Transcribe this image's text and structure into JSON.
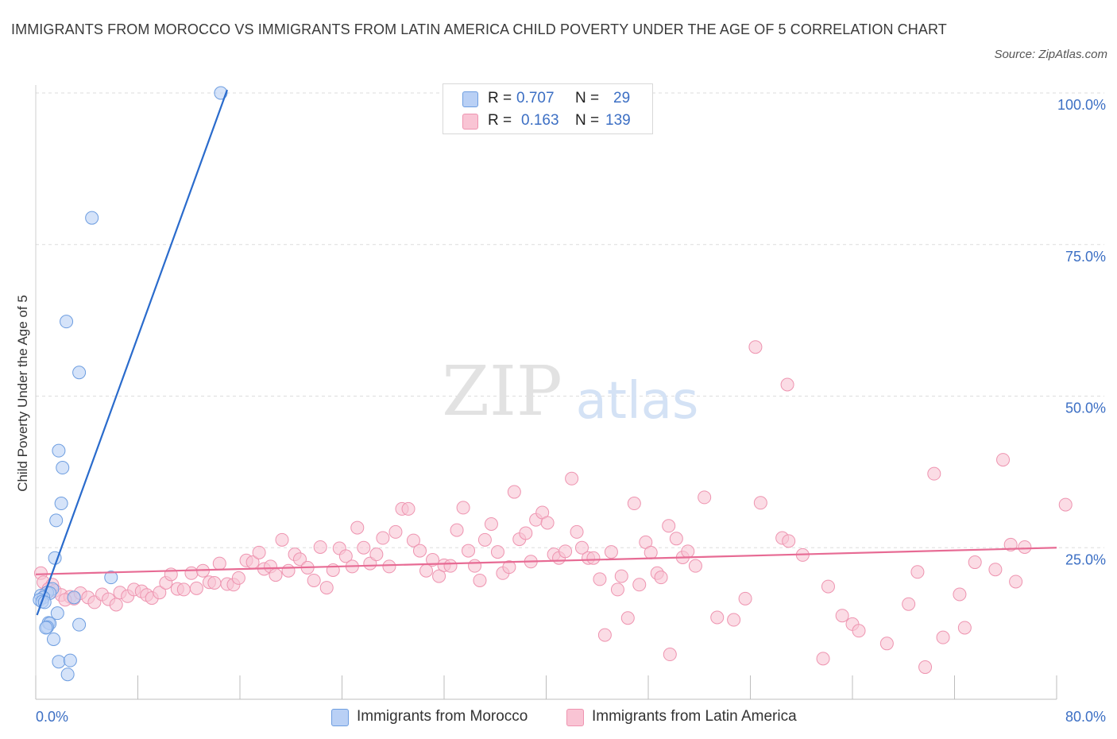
{
  "title": "IMMIGRANTS FROM MOROCCO VS IMMIGRANTS FROM LATIN AMERICA CHILD POVERTY UNDER THE AGE OF 5 CORRELATION CHART",
  "source": "Source: ZipAtlas.com",
  "watermark": {
    "zip": "ZIP",
    "atlas": "atlas"
  },
  "legend": {
    "rows": [
      {
        "r_label": "R =",
        "r_value": "0.707",
        "n_label": "N =",
        "n_value": "29"
      },
      {
        "r_label": "R =",
        "r_value": "0.163",
        "n_label": "N =",
        "n_value": "139"
      }
    ]
  },
  "colors": {
    "morocco_fill": "#b9d0f5",
    "morocco_stroke": "#6d9de0",
    "morocco_line": "#2a6bcc",
    "latam_fill": "#f9c4d4",
    "latam_stroke": "#ee94b0",
    "latam_line": "#e76b94",
    "tick_label": "#3c6fc4",
    "grid": "#dddddd"
  },
  "chart_data": {
    "type": "scatter",
    "title": "IMMIGRANTS FROM MOROCCO VS IMMIGRANTS FROM LATIN AMERICA CHILD POVERTY UNDER THE AGE OF 5 CORRELATION CHART",
    "xlabel": "",
    "ylabel": "Child Poverty Under the Age of 5",
    "xlim": [
      0,
      80
    ],
    "ylim": [
      0,
      100
    ],
    "x_tick_labels": [
      "0.0%",
      "80.0%"
    ],
    "y_ticks": [
      25,
      50,
      75,
      100
    ],
    "y_tick_labels": [
      "25.0%",
      "50.0%",
      "75.0%",
      "100.0%"
    ],
    "grid": true,
    "legend_position": "top-center",
    "series": [
      {
        "name": "Immigrants from Morocco",
        "r": 0.707,
        "n": 29,
        "trend": {
          "x": [
            0.1,
            15.0
          ],
          "y": [
            13.9,
            100.5
          ]
        },
        "points": [
          [
            14.5,
            100.0
          ],
          [
            4.4,
            79.4
          ],
          [
            2.4,
            62.3
          ],
          [
            3.4,
            53.9
          ],
          [
            1.8,
            41.0
          ],
          [
            2.1,
            38.2
          ],
          [
            2.0,
            32.3
          ],
          [
            1.6,
            29.5
          ],
          [
            1.5,
            23.3
          ],
          [
            5.9,
            20.1
          ],
          [
            1.3,
            18.2
          ],
          [
            0.9,
            17.6
          ],
          [
            1.1,
            17.5
          ],
          [
            0.4,
            17.1
          ],
          [
            0.6,
            16.8
          ],
          [
            3.0,
            16.8
          ],
          [
            0.3,
            16.4
          ],
          [
            0.5,
            16.1
          ],
          [
            0.7,
            16.0
          ],
          [
            1.7,
            14.2
          ],
          [
            1.0,
            12.6
          ],
          [
            1.1,
            12.5
          ],
          [
            3.4,
            12.3
          ],
          [
            0.9,
            11.9
          ],
          [
            0.8,
            11.8
          ],
          [
            1.4,
            9.9
          ],
          [
            1.8,
            6.2
          ],
          [
            2.7,
            6.4
          ],
          [
            2.5,
            4.1
          ]
        ]
      },
      {
        "name": "Immigrants from Latin America",
        "r": 0.163,
        "n": 139,
        "trend": {
          "x": [
            0.0,
            80.0
          ],
          "y": [
            20.6,
            25.0
          ]
        },
        "points": [
          [
            0.4,
            20.8
          ],
          [
            0.6,
            19.3
          ],
          [
            1.3,
            18.9
          ],
          [
            1.0,
            18.2
          ],
          [
            1.5,
            17.9
          ],
          [
            0.8,
            17.5
          ],
          [
            2.0,
            17.2
          ],
          [
            2.7,
            16.9
          ],
          [
            3.0,
            16.6
          ],
          [
            2.3,
            16.4
          ],
          [
            3.5,
            17.5
          ],
          [
            4.1,
            16.8
          ],
          [
            4.6,
            16.0
          ],
          [
            5.2,
            17.3
          ],
          [
            5.7,
            16.5
          ],
          [
            6.3,
            15.6
          ],
          [
            6.6,
            17.6
          ],
          [
            7.2,
            17.0
          ],
          [
            7.7,
            18.1
          ],
          [
            8.3,
            17.8
          ],
          [
            8.7,
            17.2
          ],
          [
            9.1,
            16.7
          ],
          [
            9.7,
            17.6
          ],
          [
            10.2,
            19.2
          ],
          [
            10.6,
            20.6
          ],
          [
            11.1,
            18.2
          ],
          [
            11.6,
            18.1
          ],
          [
            12.2,
            20.8
          ],
          [
            12.6,
            18.3
          ],
          [
            13.1,
            21.2
          ],
          [
            13.6,
            19.3
          ],
          [
            14.0,
            19.2
          ],
          [
            14.4,
            22.4
          ],
          [
            15.0,
            19.0
          ],
          [
            15.5,
            18.9
          ],
          [
            15.9,
            20.0
          ],
          [
            16.5,
            22.9
          ],
          [
            17.0,
            22.6
          ],
          [
            17.5,
            24.2
          ],
          [
            17.9,
            21.5
          ],
          [
            18.4,
            21.9
          ],
          [
            18.8,
            20.5
          ],
          [
            19.3,
            26.3
          ],
          [
            19.8,
            21.2
          ],
          [
            20.3,
            23.9
          ],
          [
            20.7,
            23.1
          ],
          [
            21.3,
            21.7
          ],
          [
            21.8,
            19.6
          ],
          [
            22.3,
            25.1
          ],
          [
            22.8,
            18.4
          ],
          [
            23.3,
            21.3
          ],
          [
            23.8,
            24.9
          ],
          [
            24.3,
            23.6
          ],
          [
            24.8,
            21.9
          ],
          [
            25.2,
            28.3
          ],
          [
            25.7,
            25.0
          ],
          [
            26.2,
            22.4
          ],
          [
            26.7,
            23.9
          ],
          [
            27.2,
            26.6
          ],
          [
            27.7,
            21.9
          ],
          [
            28.2,
            27.6
          ],
          [
            28.7,
            31.4
          ],
          [
            29.2,
            31.4
          ],
          [
            29.6,
            26.2
          ],
          [
            30.1,
            24.5
          ],
          [
            30.6,
            21.2
          ],
          [
            31.1,
            23.0
          ],
          [
            31.6,
            20.3
          ],
          [
            32.0,
            22.1
          ],
          [
            32.5,
            22.0
          ],
          [
            33.0,
            27.9
          ],
          [
            33.5,
            31.6
          ],
          [
            33.9,
            24.5
          ],
          [
            34.4,
            22.0
          ],
          [
            34.8,
            19.6
          ],
          [
            35.2,
            26.3
          ],
          [
            35.7,
            28.9
          ],
          [
            36.2,
            24.3
          ],
          [
            36.6,
            20.8
          ],
          [
            37.1,
            21.8
          ],
          [
            37.5,
            34.2
          ],
          [
            37.9,
            26.4
          ],
          [
            38.4,
            27.4
          ],
          [
            38.8,
            22.7
          ],
          [
            39.2,
            29.6
          ],
          [
            39.7,
            30.8
          ],
          [
            40.1,
            29.1
          ],
          [
            40.6,
            23.9
          ],
          [
            41.0,
            23.3
          ],
          [
            41.5,
            24.4
          ],
          [
            42.0,
            36.4
          ],
          [
            42.4,
            27.6
          ],
          [
            42.8,
            25.0
          ],
          [
            43.3,
            23.3
          ],
          [
            43.7,
            23.3
          ],
          [
            44.2,
            19.8
          ],
          [
            44.6,
            10.6
          ],
          [
            45.1,
            24.3
          ],
          [
            45.6,
            18.1
          ],
          [
            45.9,
            20.3
          ],
          [
            46.4,
            13.4
          ],
          [
            46.9,
            32.3
          ],
          [
            47.3,
            18.9
          ],
          [
            47.8,
            25.9
          ],
          [
            48.2,
            24.2
          ],
          [
            48.7,
            20.8
          ],
          [
            49.0,
            20.1
          ],
          [
            49.6,
            28.6
          ],
          [
            49.7,
            7.4
          ],
          [
            50.2,
            26.5
          ],
          [
            50.7,
            23.4
          ],
          [
            51.1,
            24.4
          ],
          [
            51.7,
            22.0
          ],
          [
            52.4,
            33.3
          ],
          [
            56.4,
            58.1
          ],
          [
            56.8,
            32.4
          ],
          [
            58.9,
            51.9
          ],
          [
            58.5,
            26.6
          ],
          [
            59.0,
            26.1
          ],
          [
            60.1,
            23.8
          ],
          [
            62.1,
            18.6
          ],
          [
            63.2,
            13.8
          ],
          [
            64.0,
            12.4
          ],
          [
            64.5,
            11.3
          ],
          [
            66.7,
            9.2
          ],
          [
            68.4,
            15.7
          ],
          [
            69.1,
            21.0
          ],
          [
            69.7,
            5.3
          ],
          [
            70.4,
            37.2
          ],
          [
            71.1,
            10.2
          ],
          [
            72.4,
            17.3
          ],
          [
            72.8,
            11.8
          ],
          [
            73.6,
            22.6
          ],
          [
            75.2,
            21.4
          ],
          [
            75.8,
            39.5
          ],
          [
            76.4,
            25.5
          ],
          [
            76.8,
            19.4
          ],
          [
            77.5,
            25.1
          ],
          [
            80.7,
            32.1
          ],
          [
            55.6,
            16.6
          ],
          [
            54.7,
            13.1
          ],
          [
            53.4,
            13.5
          ],
          [
            61.7,
            6.7
          ]
        ]
      }
    ]
  },
  "bottom_legend": [
    "Immigrants from Morocco",
    "Immigrants from Latin America"
  ]
}
